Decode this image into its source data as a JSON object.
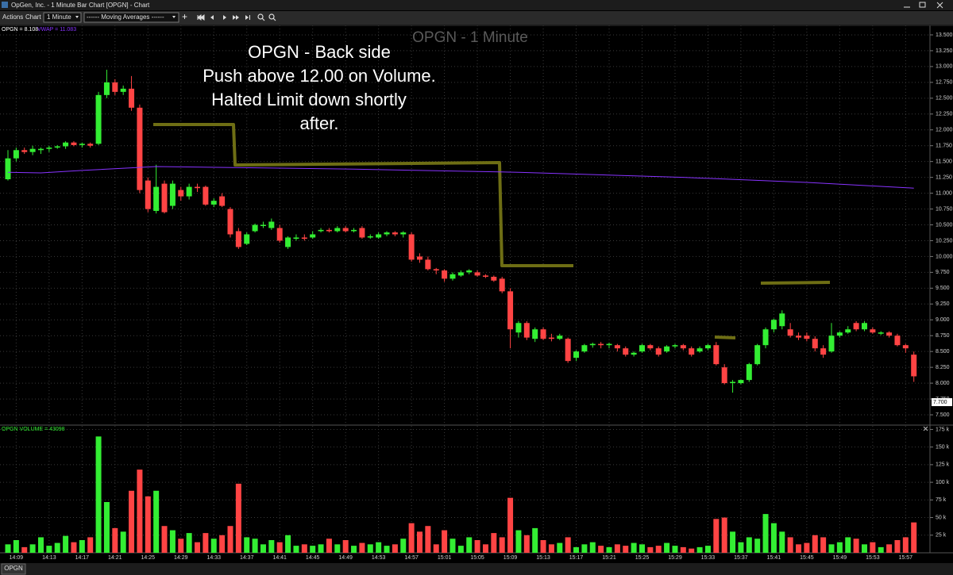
{
  "window": {
    "title": "OpGen, Inc. - 1 Minute Bar Chart [OPGN] - Chart"
  },
  "toolbar": {
    "menus": [
      "Actions",
      "Chart"
    ],
    "interval": "1 Minute",
    "studies": "------ Moving Averages ------",
    "add": "+"
  },
  "tabs": [
    "OPGN"
  ],
  "chart_data": [
    {
      "type": "candlestick",
      "title": "OPGN - 1 Minute",
      "annotation": [
        "OPGN - Back side",
        "Push above 12.00 on Volume.",
        "Halted Limit down shortly",
        "after."
      ],
      "legend": [
        {
          "name": "OPGN = 8.108",
          "color": "#ffffff"
        },
        {
          "name": "VWAP = 11.083",
          "color": "#8833ff"
        }
      ],
      "up_color": "#33ee33",
      "down_color": "#ff4444",
      "grid": true,
      "categories": [
        "14:08",
        "14:09",
        "14:10",
        "14:11",
        "14:12",
        "14:13",
        "14:14",
        "14:15",
        "14:16",
        "14:17",
        "14:18",
        "14:19",
        "14:20",
        "14:21",
        "14:22",
        "14:23",
        "14:24",
        "14:25",
        "14:26",
        "14:27",
        "14:28",
        "14:29",
        "14:30",
        "14:31",
        "14:32",
        "14:33",
        "14:34",
        "14:35",
        "14:36",
        "14:37",
        "14:38",
        "14:39",
        "14:40",
        "14:41",
        "14:42",
        "14:43",
        "14:44",
        "14:45",
        "14:46",
        "14:47",
        "14:48",
        "14:49",
        "14:50",
        "14:51",
        "14:52",
        "14:53",
        "14:54",
        "14:55",
        "14:56",
        "14:57",
        "14:58",
        "14:59",
        "15:00",
        "15:01",
        "15:02",
        "15:03",
        "15:04",
        "15:05",
        "15:06",
        "15:07",
        "15:08",
        "15:09",
        "15:10",
        "15:11",
        "15:12",
        "15:13",
        "15:14",
        "15:15",
        "15:16",
        "15:17",
        "15:18",
        "15:19",
        "15:20",
        "15:21",
        "15:22",
        "15:23",
        "15:24",
        "15:25",
        "15:26",
        "15:27",
        "15:28",
        "15:29",
        "15:30",
        "15:31",
        "15:32",
        "15:33",
        "15:34",
        "15:35",
        "15:36",
        "15:37",
        "15:38",
        "15:39",
        "15:40",
        "15:41",
        "15:42",
        "15:43",
        "15:44",
        "15:45",
        "15:46",
        "15:47",
        "15:48",
        "15:49",
        "15:50",
        "15:51",
        "15:52",
        "15:53",
        "15:54",
        "15:55",
        "15:56",
        "15:57",
        "15:58"
      ],
      "open": [
        11.22,
        11.55,
        11.68,
        11.65,
        11.68,
        11.7,
        11.72,
        11.74,
        11.8,
        11.76,
        11.78,
        11.78,
        12.55,
        12.75,
        12.6,
        12.65,
        12.35,
        11.2,
        10.72,
        11.15,
        10.8,
        11.05,
        10.95,
        11.1,
        11.1,
        10.82,
        10.95,
        10.75,
        10.4,
        10.2,
        10.4,
        10.5,
        10.45,
        10.45,
        10.15,
        10.28,
        10.3,
        10.3,
        10.4,
        10.42,
        10.4,
        10.45,
        10.4,
        10.45,
        10.3,
        10.3,
        10.35,
        10.38,
        10.35,
        10.35,
        10.0,
        9.95,
        9.8,
        9.78,
        9.65,
        9.7,
        9.75,
        9.75,
        9.7,
        9.68,
        9.65,
        9.45,
        8.8,
        8.95,
        8.7,
        8.85,
        8.72,
        8.7,
        8.7,
        8.4,
        8.5,
        8.6,
        8.62,
        8.6,
        8.6,
        8.55,
        8.45,
        8.5,
        8.6,
        8.55,
        8.5,
        8.58,
        8.6,
        8.55,
        8.5,
        8.55,
        8.6,
        8.25,
        8.02,
        8.0,
        8.05,
        8.3,
        8.6,
        8.85,
        8.9,
        8.85,
        8.75,
        8.75,
        8.7,
        8.55,
        8.5,
        8.75,
        8.8,
        8.95,
        8.85,
        8.85,
        8.8,
        8.8,
        8.75,
        8.6,
        8.45
      ],
      "high": [
        11.68,
        11.72,
        11.72,
        11.75,
        11.72,
        11.75,
        11.76,
        11.82,
        11.82,
        11.8,
        11.8,
        12.6,
        12.95,
        12.8,
        12.7,
        12.85,
        12.4,
        11.25,
        11.45,
        11.2,
        11.2,
        11.1,
        11.15,
        11.15,
        11.12,
        10.92,
        11.0,
        10.78,
        10.45,
        10.38,
        10.52,
        10.55,
        10.6,
        10.5,
        10.32,
        10.35,
        10.35,
        10.4,
        10.45,
        10.45,
        10.48,
        10.48,
        10.45,
        10.48,
        10.35,
        10.38,
        10.4,
        10.4,
        10.4,
        10.38,
        10.05,
        10.0,
        9.82,
        9.8,
        9.75,
        9.78,
        9.8,
        9.78,
        9.72,
        9.7,
        9.68,
        9.5,
        8.98,
        8.98,
        8.88,
        8.88,
        8.78,
        8.78,
        8.72,
        8.52,
        8.62,
        8.64,
        8.65,
        8.64,
        8.62,
        8.58,
        8.5,
        8.62,
        8.62,
        8.58,
        8.6,
        8.62,
        8.62,
        8.58,
        8.58,
        8.62,
        8.65,
        8.3,
        8.05,
        8.06,
        8.32,
        8.62,
        8.88,
        9.02,
        9.15,
        8.95,
        8.8,
        8.8,
        8.74,
        8.6,
        8.95,
        8.82,
        8.9,
        8.98,
        8.98,
        8.88,
        8.82,
        8.82,
        8.78,
        8.62,
        8.5
      ],
      "low": [
        11.2,
        11.5,
        11.62,
        11.6,
        11.62,
        11.65,
        11.7,
        11.7,
        11.74,
        11.72,
        11.72,
        11.76,
        12.5,
        12.55,
        12.55,
        12.3,
        11.0,
        10.7,
        10.68,
        10.68,
        10.75,
        10.88,
        10.9,
        11.02,
        10.8,
        10.78,
        10.78,
        10.3,
        10.12,
        10.18,
        10.38,
        10.45,
        10.42,
        10.22,
        10.12,
        10.25,
        10.25,
        10.28,
        10.38,
        10.38,
        10.38,
        10.38,
        10.38,
        10.28,
        10.28,
        10.28,
        10.32,
        10.32,
        10.3,
        9.92,
        9.9,
        9.78,
        9.72,
        9.6,
        9.62,
        9.68,
        9.72,
        9.68,
        9.66,
        9.6,
        9.42,
        8.55,
        8.72,
        8.68,
        8.65,
        8.68,
        8.66,
        8.68,
        8.32,
        8.35,
        8.48,
        8.56,
        8.55,
        8.55,
        8.5,
        8.42,
        8.42,
        8.48,
        8.52,
        8.42,
        8.48,
        8.55,
        8.52,
        8.42,
        8.48,
        8.52,
        8.28,
        7.98,
        7.85,
        7.98,
        8.02,
        8.28,
        8.55,
        8.8,
        8.85,
        8.72,
        8.68,
        8.66,
        8.5,
        8.4,
        8.48,
        8.72,
        8.78,
        8.82,
        8.82,
        8.78,
        8.76,
        8.72,
        8.58,
        8.48,
        8.02
      ],
      "close": [
        11.55,
        11.68,
        11.65,
        11.7,
        11.7,
        11.72,
        11.74,
        11.8,
        11.76,
        11.78,
        11.75,
        12.55,
        12.75,
        12.6,
        12.65,
        12.35,
        11.05,
        10.75,
        11.1,
        10.7,
        11.15,
        10.95,
        11.1,
        11.08,
        10.82,
        10.88,
        10.8,
        10.35,
        10.15,
        10.35,
        10.5,
        10.5,
        10.55,
        10.25,
        10.3,
        10.3,
        10.28,
        10.35,
        10.42,
        10.4,
        10.45,
        10.4,
        10.42,
        10.3,
        10.32,
        10.35,
        10.38,
        10.35,
        10.38,
        9.95,
        9.95,
        9.8,
        9.78,
        9.65,
        9.72,
        9.75,
        9.78,
        9.7,
        9.68,
        9.62,
        9.45,
        8.85,
        8.95,
        8.72,
        8.85,
        8.7,
        8.7,
        8.75,
        8.35,
        8.5,
        8.6,
        8.62,
        8.6,
        8.62,
        8.55,
        8.45,
        8.48,
        8.6,
        8.55,
        8.45,
        8.58,
        8.6,
        8.55,
        8.45,
        8.55,
        8.6,
        8.3,
        8.0,
        8.02,
        8.05,
        8.3,
        8.6,
        8.85,
        9.0,
        9.1,
        8.75,
        8.72,
        8.7,
        8.55,
        8.45,
        8.75,
        8.8,
        8.85,
        8.85,
        8.95,
        8.8,
        8.8,
        8.75,
        8.6,
        8.55,
        8.108
      ],
      "vwap": {
        "name": "VWAP",
        "color": "#8833ff",
        "x": [
          "14:08",
          "14:12",
          "14:17",
          "14:26",
          "14:50",
          "15:10",
          "15:30",
          "15:45",
          "15:58"
        ],
        "values": [
          11.33,
          11.32,
          11.36,
          11.42,
          11.38,
          11.33,
          11.25,
          11.17,
          11.08
        ]
      },
      "price_marker": {
        "value": 7.7,
        "label": "7.700"
      },
      "ylim": [
        7.35,
        13.65
      ],
      "yticks": [
        {
          "value": 7.5,
          "label": "7.500"
        },
        {
          "value": 7.75,
          "label": "7.750"
        },
        {
          "value": 8,
          "label": "8.000"
        },
        {
          "value": 8.25,
          "label": "8.250"
        },
        {
          "value": 8.5,
          "label": "8.500"
        },
        {
          "value": 8.75,
          "label": "8.750"
        },
        {
          "value": 9,
          "label": "9.000"
        },
        {
          "value": 9.25,
          "label": "9.250"
        },
        {
          "value": 9.5,
          "label": "9.500"
        },
        {
          "value": 9.75,
          "label": "9.750"
        },
        {
          "value": 10,
          "label": "10.000"
        },
        {
          "value": 10.25,
          "label": "10.250"
        },
        {
          "value": 10.5,
          "label": "10.500"
        },
        {
          "value": 10.75,
          "label": "10.750"
        },
        {
          "value": 11,
          "label": "11.000"
        },
        {
          "value": 11.25,
          "label": "11.250"
        },
        {
          "value": 11.5,
          "label": "11.500"
        },
        {
          "value": 11.75,
          "label": "11.750"
        },
        {
          "value": 12,
          "label": "12.000"
        },
        {
          "value": 12.25,
          "label": "12.250"
        },
        {
          "value": 12.5,
          "label": "12.500"
        },
        {
          "value": 12.75,
          "label": "12.750"
        },
        {
          "value": 13,
          "label": "13.000"
        },
        {
          "value": 13.25,
          "label": "13.250"
        },
        {
          "value": 13.5,
          "label": "13.500"
        }
      ],
      "xticks": [
        "14:09",
        "14:13",
        "14:17",
        "14:21",
        "14:25",
        "14:29",
        "14:33",
        "14:37",
        "14:41",
        "14:45",
        "14:49",
        "14:53",
        "14:57",
        "15:01",
        "15:05",
        "15:09",
        "15:13",
        "15:17",
        "15:21",
        "15:25",
        "15:29",
        "15:33",
        "15:37",
        "15:41",
        "15:45",
        "15:49",
        "15:53",
        "15:57"
      ]
    },
    {
      "type": "bar",
      "title": "OPGN VOLUME = 43098",
      "title_color": "#33ee33",
      "up_color": "#33ee33",
      "down_color": "#ff4444",
      "grid": true,
      "values": [
        12000,
        18000,
        8000,
        12000,
        22000,
        10000,
        14000,
        24000,
        15000,
        18000,
        22000,
        165000,
        72000,
        35000,
        30000,
        88000,
        118000,
        80000,
        88000,
        38000,
        32000,
        20000,
        28000,
        15000,
        28000,
        20000,
        25000,
        38000,
        98000,
        22000,
        20000,
        12000,
        18000,
        15000,
        25000,
        10000,
        12000,
        10000,
        12000,
        20000,
        12000,
        18000,
        10000,
        14000,
        12000,
        15000,
        10000,
        12000,
        20000,
        42000,
        30000,
        38000,
        12000,
        32000,
        20000,
        10000,
        22000,
        18000,
        12000,
        28000,
        22000,
        78000,
        32000,
        25000,
        35000,
        18000,
        12000,
        14000,
        22000,
        8000,
        12000,
        15000,
        10000,
        8000,
        12000,
        10000,
        14000,
        12000,
        8000,
        10000,
        14000,
        10000,
        8000,
        6000,
        8000,
        10000,
        48000,
        50000,
        30000,
        15000,
        22000,
        20000,
        55000,
        42000,
        30000,
        22000,
        12000,
        14000,
        25000,
        22000,
        12000,
        15000,
        22000,
        20000,
        12000,
        15000,
        8000,
        12000,
        18000,
        22000,
        43098
      ],
      "ylim": [
        0,
        180000
      ],
      "yticks": [
        {
          "value": 25000,
          "label": "25 k"
        },
        {
          "value": 50000,
          "label": "50 k"
        },
        {
          "value": 75000,
          "label": "75 k"
        },
        {
          "value": 100000,
          "label": "100 k"
        },
        {
          "value": 125000,
          "label": "125 k"
        },
        {
          "value": 150000,
          "label": "150 k"
        },
        {
          "value": 175000,
          "label": "175 k"
        }
      ]
    }
  ]
}
